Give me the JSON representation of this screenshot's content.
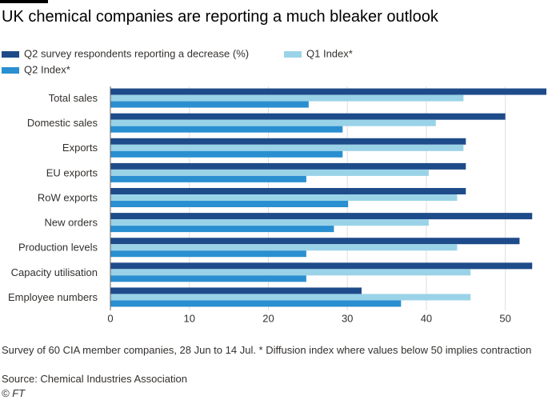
{
  "chart_data": {
    "type": "hbar",
    "title": "UK chemical companies are reporting a much bleaker outlook",
    "categories": [
      "Total sales",
      "Domestic sales",
      "Exports",
      "EU exports",
      "RoW exports",
      "New orders",
      "Production levels",
      "Capacity utilisation",
      "Employee numbers"
    ],
    "series": [
      {
        "name": "Q2 survey respondents reporting a decrease (%)",
        "color": "#1e4b8a",
        "values": [
          55.2,
          50,
          45,
          45,
          45,
          53.4,
          51.8,
          53.4,
          31.8
        ]
      },
      {
        "name": "Q1 Index*",
        "color": "#9ad3e8",
        "values": [
          44.7,
          41.2,
          44.7,
          40.3,
          43.9,
          40.3,
          43.9,
          45.6,
          45.6
        ]
      },
      {
        "name": "Q2 Index*",
        "color": "#2a8fd0",
        "values": [
          25.1,
          29.4,
          29.4,
          24.8,
          30.1,
          28.3,
          24.8,
          24.8,
          36.8
        ]
      }
    ],
    "xlim": [
      0,
      55.2
    ],
    "xticks": [
      0,
      10,
      20,
      30,
      40,
      50
    ],
    "grid": true,
    "notes": [
      "Survey of 60 CIA member companies, 28 Jun to 14 Jul. * Diffusion index where values below 50 implies contraction",
      "Source: Chemical Industries Association",
      "© FT"
    ]
  }
}
